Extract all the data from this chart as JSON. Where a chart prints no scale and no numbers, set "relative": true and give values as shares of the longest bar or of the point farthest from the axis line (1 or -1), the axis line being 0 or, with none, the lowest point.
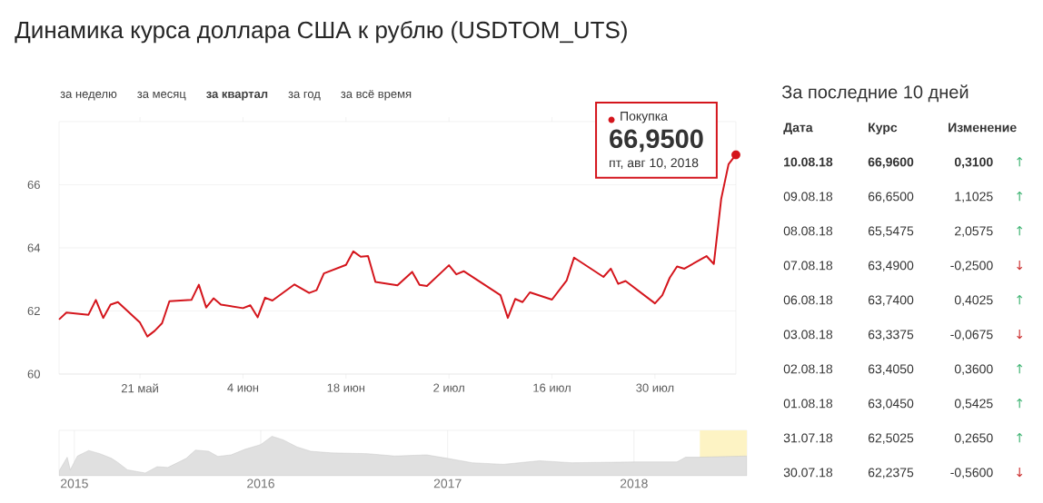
{
  "chart_data": [
    {
      "type": "line",
      "title": "Динамика курса доллара США к рублю (USDTOM_UTS)",
      "x": [
        "2018-05-10",
        "2018-05-11",
        "2018-05-14",
        "2018-05-15",
        "2018-05-16",
        "2018-05-17",
        "2018-05-18",
        "2018-05-21",
        "2018-05-22",
        "2018-05-23",
        "2018-05-24",
        "2018-05-25",
        "2018-05-28",
        "2018-05-29",
        "2018-05-30",
        "2018-05-31",
        "2018-06-01",
        "2018-06-04",
        "2018-06-05",
        "2018-06-06",
        "2018-06-07",
        "2018-06-08",
        "2018-06-11",
        "2018-06-13",
        "2018-06-14",
        "2018-06-15",
        "2018-06-18",
        "2018-06-19",
        "2018-06-20",
        "2018-06-21",
        "2018-06-22",
        "2018-06-25",
        "2018-06-27",
        "2018-06-28",
        "2018-06-29",
        "2018-07-02",
        "2018-07-03",
        "2018-07-04",
        "2018-07-09",
        "2018-07-10",
        "2018-07-11",
        "2018-07-12",
        "2018-07-13",
        "2018-07-16",
        "2018-07-18",
        "2018-07-19",
        "2018-07-23",
        "2018-07-24",
        "2018-07-25",
        "2018-07-26",
        "2018-07-30",
        "2018-07-31",
        "2018-08-01",
        "2018-08-02",
        "2018-08-03",
        "2018-08-06",
        "2018-08-07",
        "2018-08-08",
        "2018-08-09",
        "2018-08-10"
      ],
      "series": [
        {
          "name": "Покупка",
          "color": "#d4151c",
          "values": [
            61.73,
            61.95,
            61.88,
            62.35,
            61.78,
            62.2,
            62.28,
            61.63,
            61.19,
            61.37,
            61.61,
            62.31,
            62.35,
            62.83,
            62.11,
            62.4,
            62.2,
            62.09,
            62.18,
            61.8,
            62.42,
            62.33,
            62.84,
            62.57,
            62.66,
            63.19,
            63.46,
            63.89,
            63.72,
            63.74,
            62.92,
            62.81,
            63.24,
            62.83,
            62.79,
            63.45,
            63.16,
            63.26,
            62.5,
            61.78,
            62.38,
            62.28,
            62.59,
            62.36,
            62.97,
            63.69,
            63.08,
            63.34,
            62.86,
            62.95,
            62.24,
            62.5,
            63.05,
            63.41,
            63.34,
            63.74,
            63.49,
            65.55,
            66.65,
            66.95
          ]
        }
      ],
      "xlim": [
        "2018-05-10",
        "2018-08-10"
      ],
      "xticks": [
        {
          "value": "2018-05-21",
          "label": "21 май"
        },
        {
          "value": "2018-06-04",
          "label": "4 июн"
        },
        {
          "value": "2018-06-18",
          "label": "18 июн"
        },
        {
          "value": "2018-07-02",
          "label": "2 июл"
        },
        {
          "value": "2018-07-16",
          "label": "16 июл"
        },
        {
          "value": "2018-07-30",
          "label": "30 июл"
        }
      ],
      "ylim": [
        60,
        68
      ],
      "yticks": [
        60,
        62,
        64,
        66
      ],
      "grid": "y",
      "legend": "top right",
      "annotations": [
        "за неделю",
        "за месяц",
        "**за квартал**",
        "за год",
        "за всё время",
        {
          "text": "66,9500",
          "x": "2018-08-10",
          "y": 66.95
        },
        {
          "text": "пт, авг 10, 2018",
          "x": "2018-08-10",
          "y": 66.95
        }
      ]
    },
    {
      "type": "other",
      "title": "За последние 10 дней",
      "colors": [
        "#3cb371",
        "#3cb371",
        "#3cb371",
        "#cc3333",
        "#3cb371",
        "#cc3333",
        "#3cb371",
        "#3cb371",
        "#3cb371",
        "#cc3333"
      ],
      "annotations": [
        "Дата",
        "Курс",
        "Изменение",
        "**10.08.18**",
        "**66,9600**",
        "**0,3100**",
        "↑",
        "09.08.18",
        "66,6500",
        "1,1025",
        "↑",
        "08.08.18",
        "65,5475",
        "2,0575",
        "↑",
        "07.08.18",
        "63,4900",
        "-0,2500",
        "↓",
        "06.08.18",
        "63,7400",
        "0,4025",
        "↑",
        "03.08.18",
        "63,3375",
        "-0,0675",
        "↓",
        "02.08.18",
        "63,4050",
        "0,3600",
        "↑",
        "01.08.18",
        "63,0450",
        "0,5425",
        "↑",
        "31.07.18",
        "62,5025",
        "0,2650",
        "↑",
        "30.07.18",
        "62,2375",
        "-0,5600",
        "↓"
      ]
    },
    {
      "type": "area",
      "relative": true,
      "color": "#e0e0e0",
      "x": [
        "2014-12-02",
        "2014-12-18",
        "2014-12-24",
        "2015-01-07",
        "2015-01-29",
        "2015-02-20",
        "2015-03-15",
        "2015-03-28",
        "2015-04-15",
        "2015-05-20",
        "2015-06-12",
        "2015-07-03",
        "2015-08-08",
        "2015-08-26",
        "2015-09-21",
        "2015-10-09",
        "2015-11-04",
        "2015-12-01",
        "2016-01-01",
        "2016-01-23",
        "2016-02-14",
        "2016-03-12",
        "2016-04-08",
        "2016-05-18",
        "2016-07-28",
        "2016-09-20",
        "2016-11-21",
        "2017-01-01",
        "2017-02-18",
        "2017-04-20",
        "2017-06-30",
        "2017-09-01",
        "2018-01-01",
        "2018-03-26",
        "2018-04-12",
        "2018-05-08",
        "2018-08-10"
      ],
      "values": [
        0.12,
        0.47,
        0.15,
        0.5,
        0.64,
        0.56,
        0.44,
        0.33,
        0.15,
        0.07,
        0.23,
        0.21,
        0.44,
        0.65,
        0.62,
        0.49,
        0.53,
        0.67,
        0.79,
        1,
        0.91,
        0.73,
        0.62,
        0.58,
        0.56,
        0.5,
        0.53,
        0.44,
        0.33,
        0.29,
        0.38,
        0.33,
        0.35,
        0.35,
        0.47,
        0.47,
        0.5
      ],
      "xlim": [
        "2014-12-02",
        "2018-08-10"
      ],
      "xticks": [
        "2015",
        "2016",
        "2017",
        "2018"
      ],
      "grid": "x",
      "bands": [
        {
          "axis": "x",
          "from": "2018-05-10",
          "to": "2018-08-10",
          "color": "#fdf3c4"
        }
      ]
    }
  ]
}
